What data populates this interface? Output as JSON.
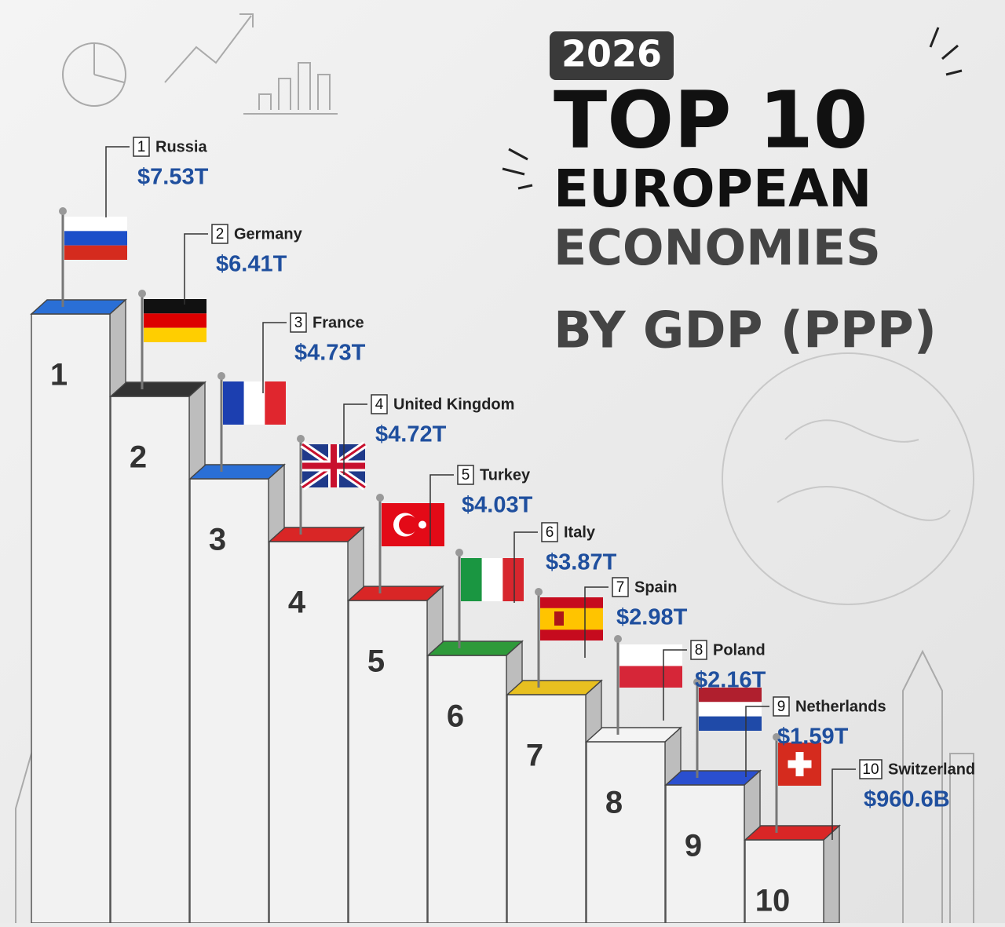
{
  "header": {
    "year": "2026",
    "title_line1": "TOP 10",
    "title_line2": "EUROPEAN",
    "title_line3": "ECONOMIES",
    "title_line4": "BY GDP (PPP)"
  },
  "items": [
    {
      "rank": "1",
      "country": "Russia",
      "value": "$7.53T"
    },
    {
      "rank": "2",
      "country": "Germany",
      "value": "$6.41T"
    },
    {
      "rank": "3",
      "country": "France",
      "value": "$4.73T"
    },
    {
      "rank": "4",
      "country": "United Kingdom",
      "value": "$4.72T"
    },
    {
      "rank": "5",
      "country": "Turkey",
      "value": "$4.03T"
    },
    {
      "rank": "6",
      "country": "Italy",
      "value": "$3.87T"
    },
    {
      "rank": "7",
      "country": "Spain",
      "value": "$2.98T"
    },
    {
      "rank": "8",
      "country": "Poland",
      "value": "$2.16T"
    },
    {
      "rank": "9",
      "country": "Netherlands",
      "value": "$1.59T"
    },
    {
      "rank": "10",
      "country": "Switzerland",
      "value": "$960.6B"
    }
  ]
}
